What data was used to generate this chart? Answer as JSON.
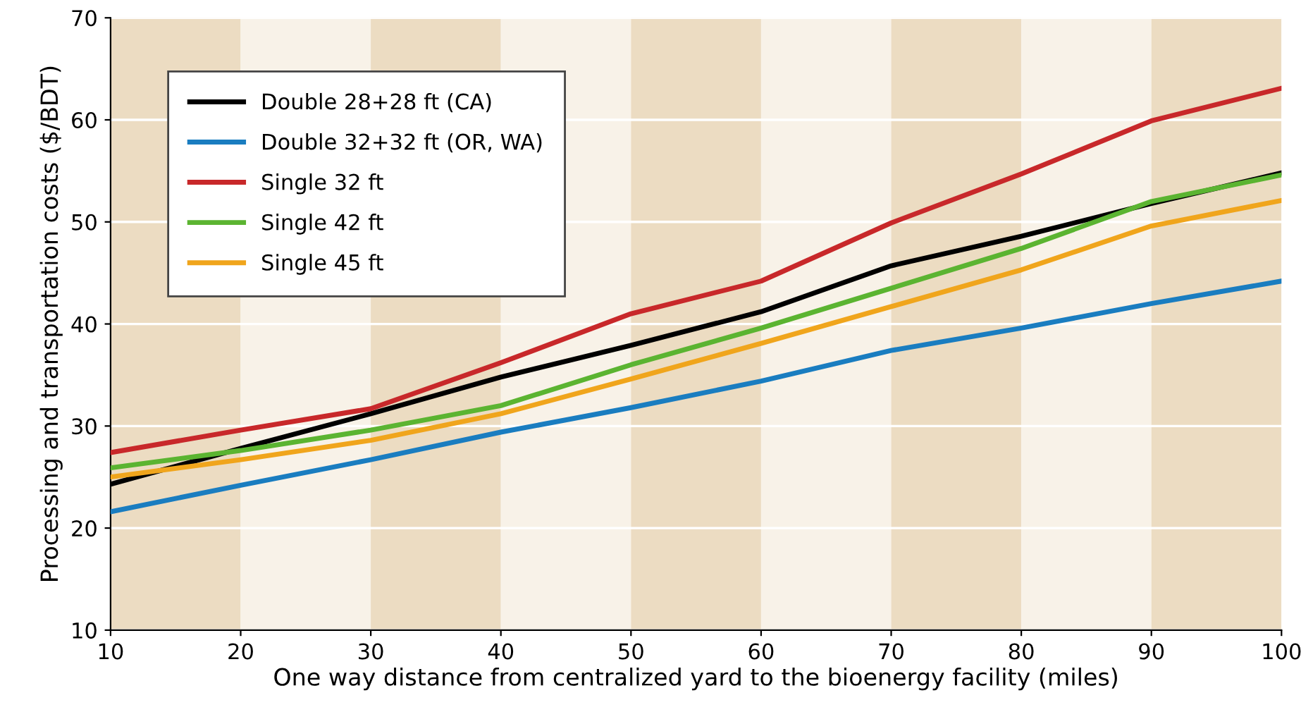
{
  "chart_data": {
    "type": "line",
    "xlabel": "One way distance from centralized yard to the bioenergy facility (miles)",
    "ylabel": "Processing and transportation costs ($/BDT)",
    "x": [
      10,
      20,
      30,
      40,
      50,
      60,
      70,
      80,
      90,
      100
    ],
    "series": [
      {
        "name": "Double 28+28 ft (CA)",
        "color": "#000000",
        "values": [
          24.3,
          27.8,
          31.2,
          34.8,
          37.9,
          41.2,
          45.7,
          48.6,
          51.8,
          54.8
        ]
      },
      {
        "name": "Double 32+32 ft (OR, WA)",
        "color": "#1a7dc0",
        "values": [
          21.6,
          24.2,
          26.7,
          29.4,
          31.8,
          34.4,
          37.4,
          39.6,
          42.0,
          44.2
        ]
      },
      {
        "name": "Single 32 ft",
        "color": "#c8282a",
        "values": [
          27.4,
          29.6,
          31.7,
          36.2,
          41.0,
          44.2,
          49.9,
          54.7,
          59.9,
          63.1
        ]
      },
      {
        "name": "Single 42 ft",
        "color": "#5bb431",
        "values": [
          25.9,
          27.6,
          29.6,
          32.0,
          36.0,
          39.6,
          43.5,
          47.4,
          52.0,
          54.6
        ]
      },
      {
        "name": "Single 45 ft",
        "color": "#f0a51c",
        "values": [
          25.0,
          26.7,
          28.6,
          31.2,
          34.6,
          38.1,
          41.7,
          45.3,
          49.6,
          52.1
        ]
      }
    ],
    "xlim": [
      10,
      100
    ],
    "xticks": [
      10,
      20,
      30,
      40,
      50,
      60,
      70,
      80,
      90,
      100
    ],
    "ylim": [
      10,
      70
    ],
    "yticks": [
      10,
      20,
      30,
      40,
      50,
      60,
      70
    ],
    "bands": [
      {
        "axis": "x",
        "from": 10,
        "to": 20,
        "color": "#ecdcc2"
      },
      {
        "axis": "x",
        "from": 20,
        "to": 30,
        "color": "#f8f2e8"
      },
      {
        "axis": "x",
        "from": 30,
        "to": 40,
        "color": "#ecdcc2"
      },
      {
        "axis": "x",
        "from": 40,
        "to": 50,
        "color": "#f8f2e8"
      },
      {
        "axis": "x",
        "from": 50,
        "to": 60,
        "color": "#ecdcc2"
      },
      {
        "axis": "x",
        "from": 60,
        "to": 70,
        "color": "#f8f2e8"
      },
      {
        "axis": "x",
        "from": 70,
        "to": 80,
        "color": "#ecdcc2"
      },
      {
        "axis": "x",
        "from": 80,
        "to": 90,
        "color": "#f8f2e8"
      },
      {
        "axis": "x",
        "from": 90,
        "to": 100,
        "color": "#ecdcc2"
      }
    ],
    "grid": "y",
    "legend": "top left",
    "marker": "none",
    "line_style": "solid"
  }
}
